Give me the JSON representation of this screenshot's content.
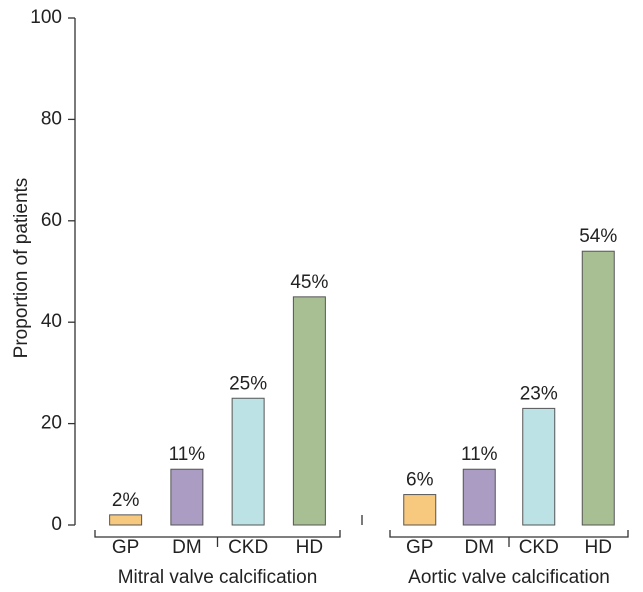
{
  "chart_data": {
    "type": "bar",
    "y_label": "Proportion of patients",
    "ylim": [
      0,
      100
    ],
    "yticks": [
      0,
      20,
      40,
      60,
      80,
      100
    ],
    "colors": [
      "#f6c97e",
      "#aa9cc2",
      "#bde2e5",
      "#a7bf93"
    ],
    "groups": [
      {
        "name": "Mitral valve calcification",
        "categories": [
          "GP",
          "DM",
          "CKD",
          "HD"
        ],
        "values": [
          2,
          11,
          25,
          45
        ],
        "value_labels": [
          "2%",
          "11%",
          "25%",
          "45%"
        ]
      },
      {
        "name": "Aortic valve calcification",
        "categories": [
          "GP",
          "DM",
          "CKD",
          "HD"
        ],
        "values": [
          6,
          11,
          23,
          54
        ],
        "value_labels": [
          "6%",
          "11%",
          "23%",
          "54%"
        ]
      }
    ]
  }
}
